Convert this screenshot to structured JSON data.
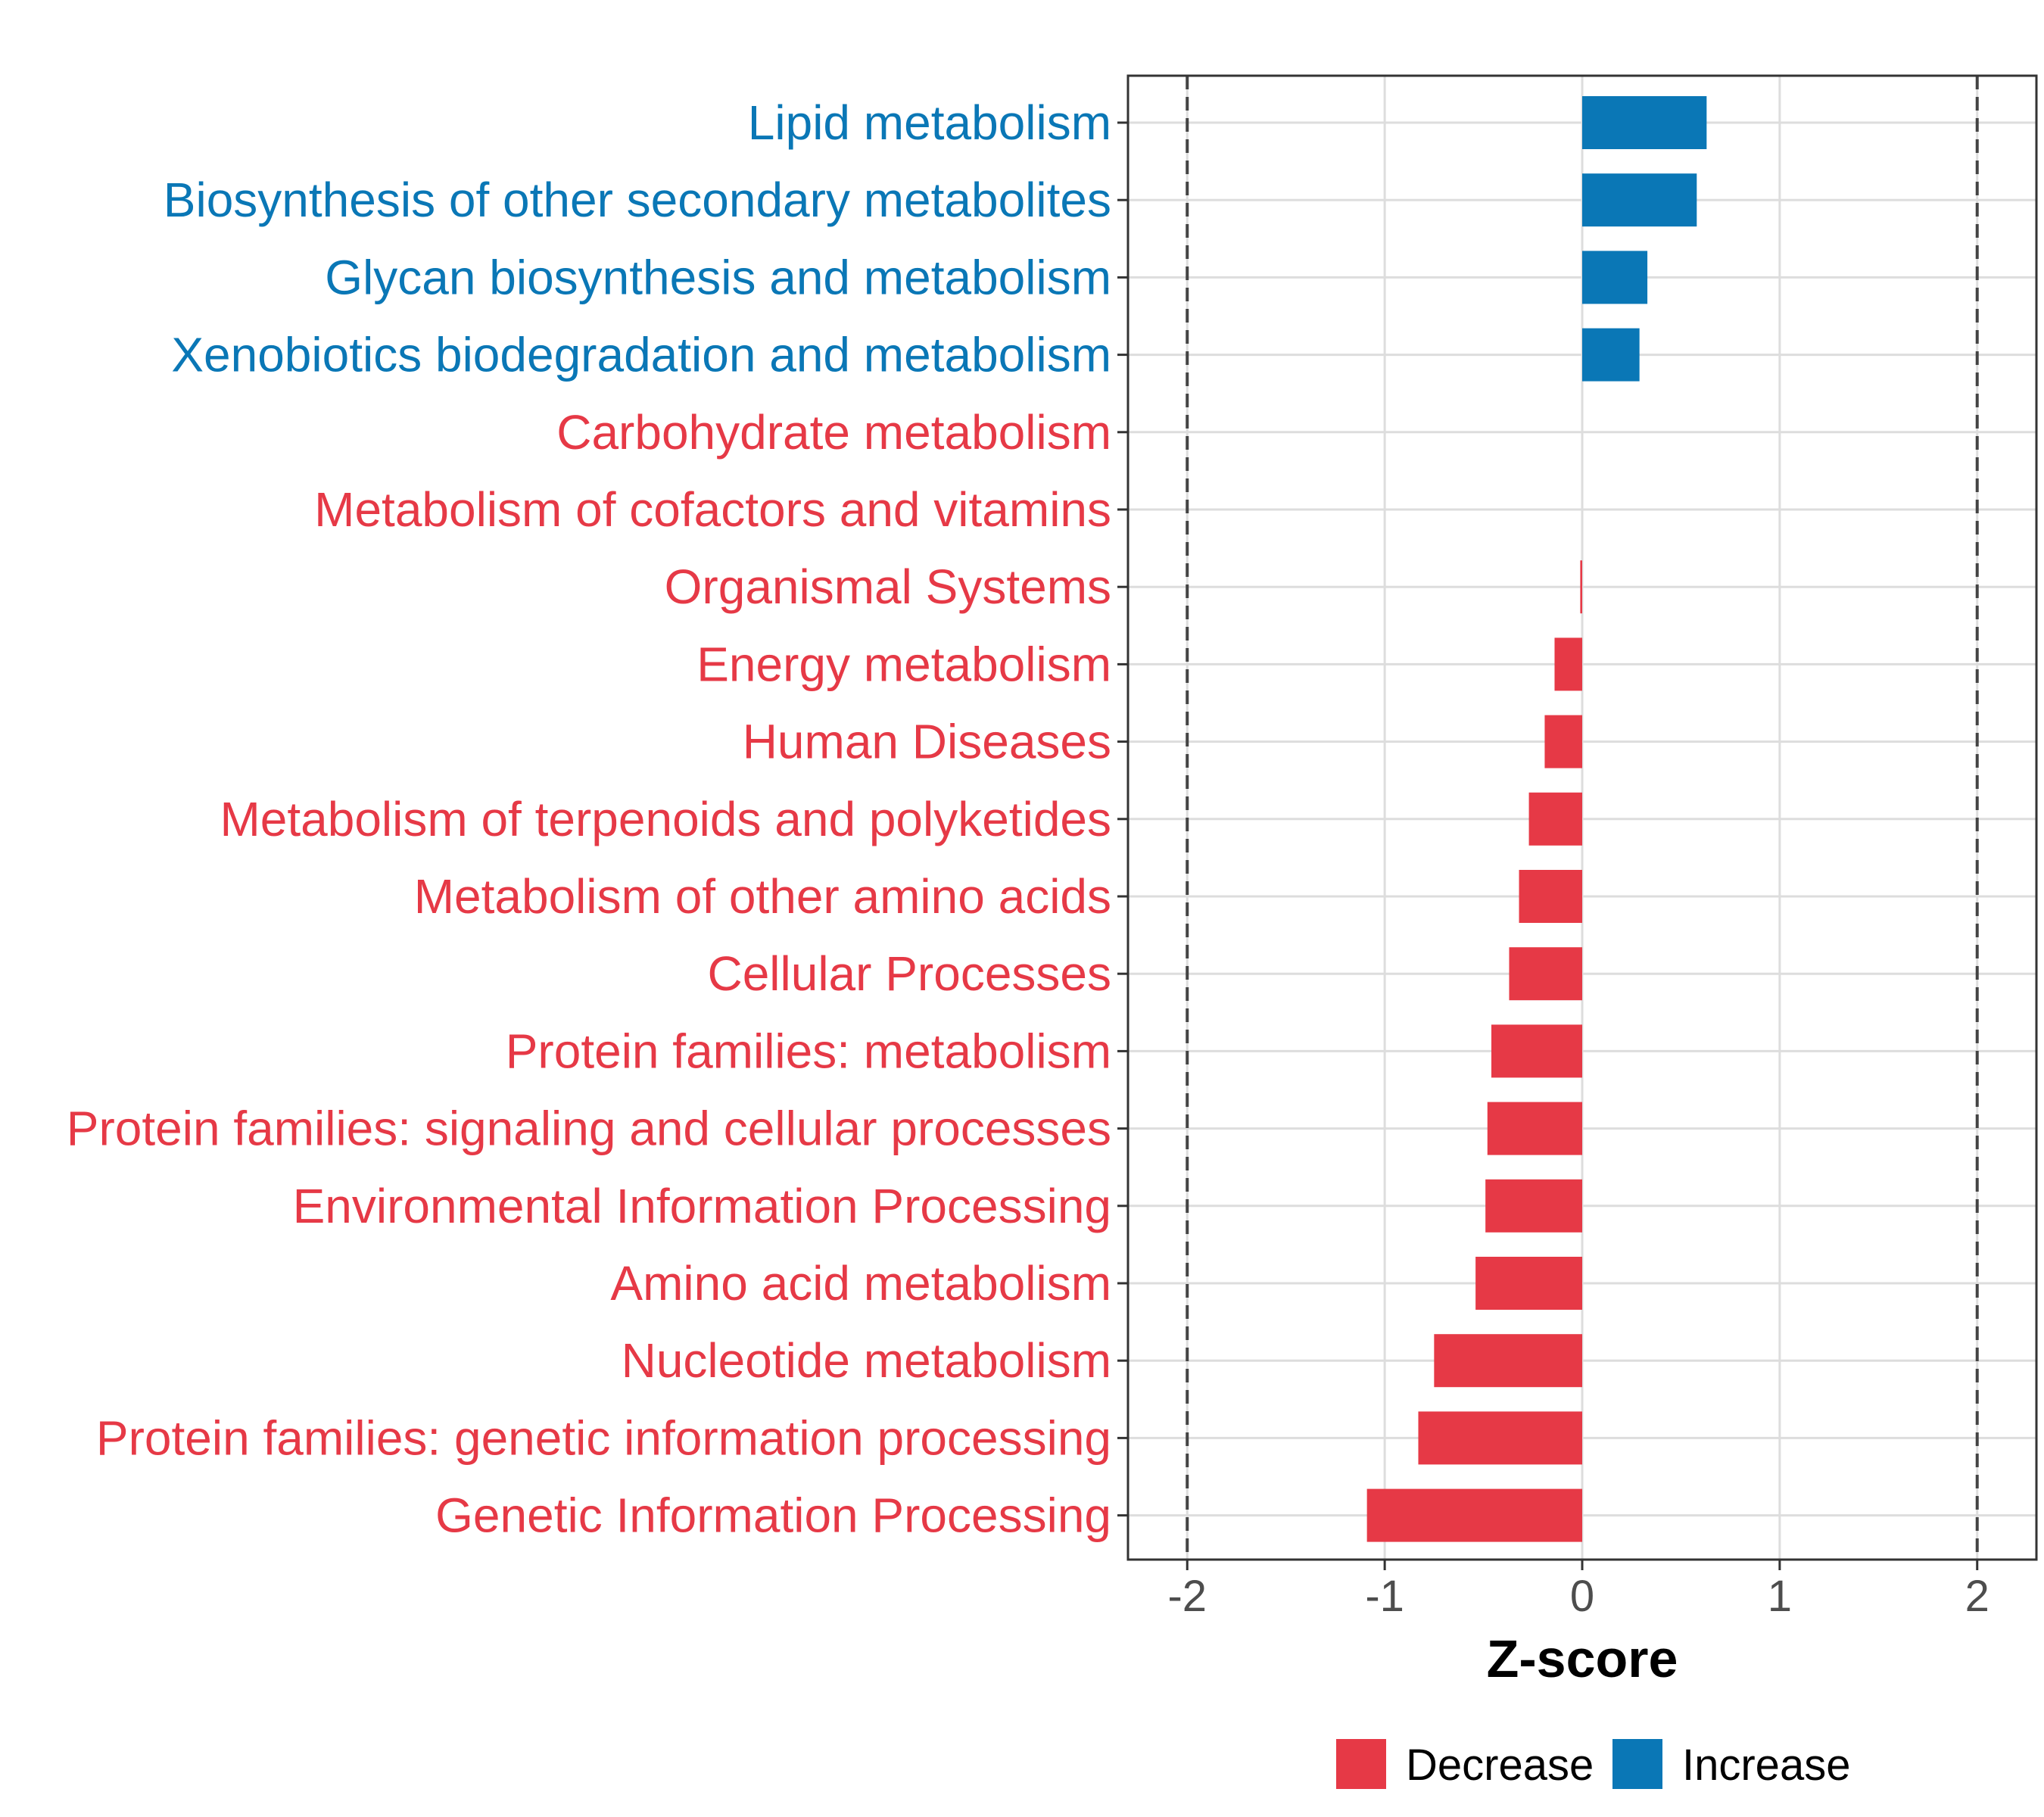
{
  "chart_data": {
    "type": "bar",
    "orientation": "horizontal",
    "xlabel": "Z-score",
    "ylabel": "",
    "xlim": [
      -2.3,
      2.3
    ],
    "xticks": [
      -2,
      -1,
      0,
      1,
      2
    ],
    "tick_labels": [
      "-2",
      "-1",
      "0",
      "1",
      "2"
    ],
    "reference_lines": [
      -2,
      2
    ],
    "grid": true,
    "categories": [
      "Lipid metabolism",
      "Biosynthesis of other secondary metabolites",
      "Glycan biosynthesis and metabolism",
      "Xenobiotics biodegradation and metabolism",
      "Carbohydrate metabolism",
      "Metabolism of cofactors and vitamins",
      "Organismal Systems",
      "Energy metabolism",
      "Human Diseases",
      "Metabolism of terpenoids and polyketides",
      "Metabolism of other amino acids",
      "Cellular Processes",
      "Protein families: metabolism",
      "Protein families: signaling and cellular processes",
      "Environmental Information Processing",
      "Amino acid metabolism",
      "Nucleotide metabolism",
      "Protein families: genetic information processing",
      "Genetic Information Processing"
    ],
    "values": [
      0.63,
      0.58,
      0.33,
      0.29,
      0,
      0,
      -0.01,
      -0.14,
      -0.19,
      -0.27,
      -0.32,
      -0.37,
      -0.46,
      -0.48,
      -0.49,
      -0.54,
      -0.75,
      -0.83,
      -1.09
    ],
    "groups": [
      "Increase",
      "Increase",
      "Increase",
      "Increase",
      "Decrease",
      "Decrease",
      "Decrease",
      "Decrease",
      "Decrease",
      "Decrease",
      "Decrease",
      "Decrease",
      "Decrease",
      "Decrease",
      "Decrease",
      "Decrease",
      "Decrease",
      "Decrease",
      "Decrease"
    ],
    "legend": {
      "position": "bottom",
      "entries": [
        {
          "label": "Decrease",
          "color": "#e63946"
        },
        {
          "label": "Increase",
          "color": "#0a77b6"
        }
      ]
    }
  }
}
